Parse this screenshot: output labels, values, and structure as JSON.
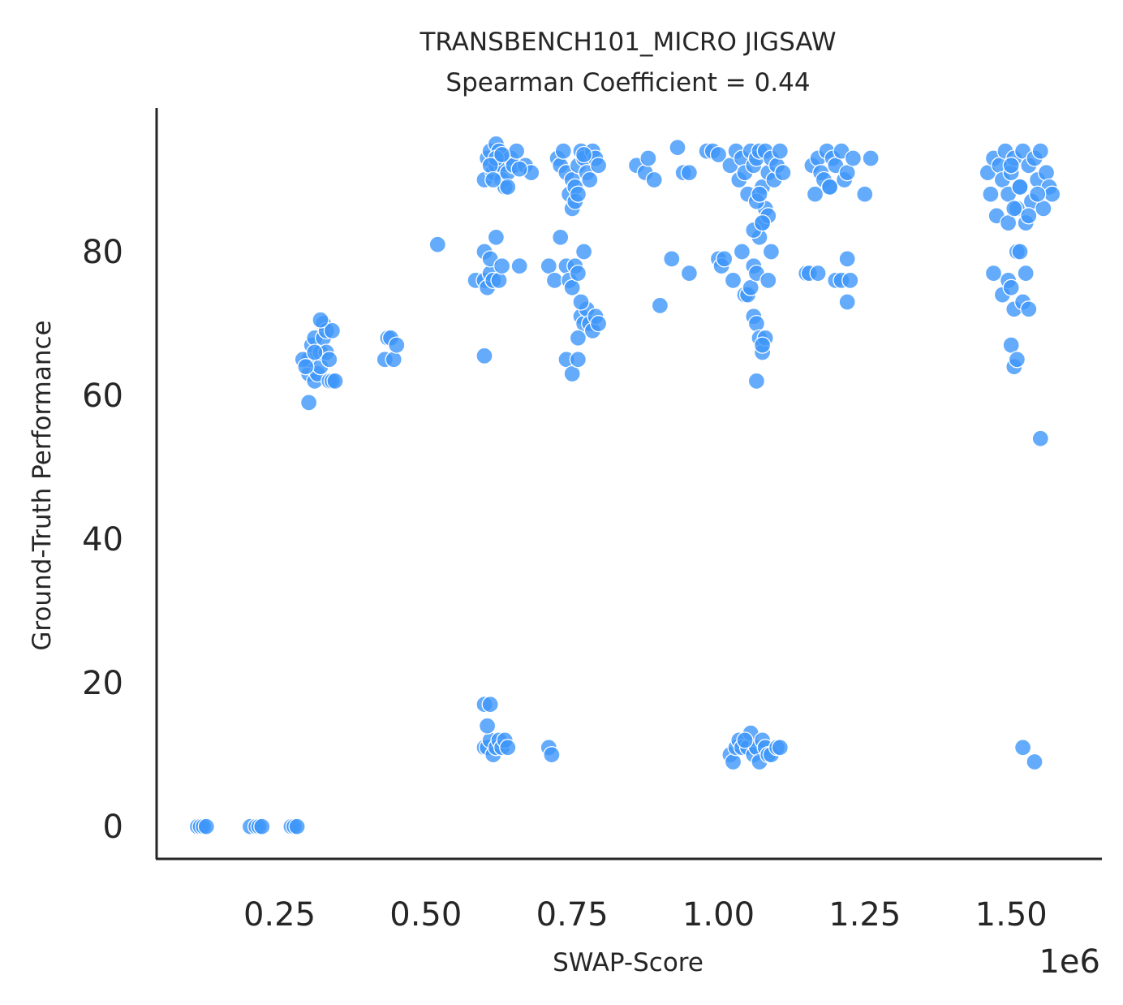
{
  "chart_data": {
    "type": "scatter",
    "title": "TRANSBENCH101_MICRO JIGSAW",
    "subtitle": "Spearman Coefficient = 0.44",
    "xlabel": "SWAP-Score",
    "ylabel": "Ground-Truth Performance",
    "x_offset_label": "1e6",
    "x_scale": 1000000,
    "xlim": [
      0.04,
      1.655
    ],
    "ylim": [
      -4.5,
      100
    ],
    "x_ticks": [
      0.25,
      0.5,
      0.75,
      1.0,
      1.25,
      1.5
    ],
    "x_tick_labels": [
      "0.25",
      "0.50",
      "0.75",
      "1.00",
      "1.25",
      "1.50"
    ],
    "y_ticks": [
      0,
      20,
      40,
      60,
      80
    ],
    "y_tick_labels": [
      "0",
      "20",
      "40",
      "60",
      "80"
    ],
    "grid": false,
    "point_color": "#3d96fa",
    "x_unit": "1e6",
    "points": [
      [
        0.11,
        0
      ],
      [
        0.115,
        0
      ],
      [
        0.12,
        0
      ],
      [
        0.125,
        0
      ],
      [
        0.2,
        0
      ],
      [
        0.21,
        0
      ],
      [
        0.215,
        0
      ],
      [
        0.22,
        0
      ],
      [
        0.27,
        0
      ],
      [
        0.275,
        0
      ],
      [
        0.28,
        0
      ],
      [
        0.3,
        59
      ],
      [
        0.3,
        63
      ],
      [
        0.3,
        65
      ],
      [
        0.305,
        67
      ],
      [
        0.31,
        68
      ],
      [
        0.31,
        62
      ],
      [
        0.315,
        63
      ],
      [
        0.32,
        64
      ],
      [
        0.32,
        66
      ],
      [
        0.325,
        68
      ],
      [
        0.325,
        70
      ],
      [
        0.33,
        66
      ],
      [
        0.33,
        69
      ],
      [
        0.335,
        65
      ],
      [
        0.335,
        62
      ],
      [
        0.34,
        69
      ],
      [
        0.34,
        62
      ],
      [
        0.345,
        62
      ],
      [
        0.29,
        65
      ],
      [
        0.295,
        64
      ],
      [
        0.31,
        66
      ],
      [
        0.32,
        70.5
      ],
      [
        0.43,
        65
      ],
      [
        0.435,
        68
      ],
      [
        0.44,
        68
      ],
      [
        0.445,
        65
      ],
      [
        0.45,
        67
      ],
      [
        0.52,
        81
      ],
      [
        0.585,
        76
      ],
      [
        0.6,
        80
      ],
      [
        0.6,
        76
      ],
      [
        0.605,
        75
      ],
      [
        0.61,
        77
      ],
      [
        0.61,
        79
      ],
      [
        0.615,
        76
      ],
      [
        0.62,
        82
      ],
      [
        0.625,
        76
      ],
      [
        0.63,
        78
      ],
      [
        0.6,
        65.5
      ],
      [
        0.6,
        90
      ],
      [
        0.605,
        93
      ],
      [
        0.61,
        94
      ],
      [
        0.615,
        91
      ],
      [
        0.62,
        92
      ],
      [
        0.62,
        95
      ],
      [
        0.625,
        94
      ],
      [
        0.63,
        92
      ],
      [
        0.63,
        90
      ],
      [
        0.635,
        89
      ],
      [
        0.64,
        91
      ],
      [
        0.645,
        93
      ],
      [
        0.65,
        92
      ],
      [
        0.655,
        94
      ],
      [
        0.62,
        93
      ],
      [
        0.61,
        92
      ],
      [
        0.615,
        90
      ],
      [
        0.63,
        93.5
      ],
      [
        0.64,
        89
      ],
      [
        0.66,
        78
      ],
      [
        0.67,
        92
      ],
      [
        0.68,
        91
      ],
      [
        0.66,
        91.5
      ],
      [
        0.6,
        11
      ],
      [
        0.605,
        11
      ],
      [
        0.61,
        12
      ],
      [
        0.615,
        10
      ],
      [
        0.62,
        11
      ],
      [
        0.625,
        12
      ],
      [
        0.63,
        11
      ],
      [
        0.635,
        12
      ],
      [
        0.64,
        11
      ],
      [
        0.6,
        17
      ],
      [
        0.61,
        17
      ],
      [
        0.605,
        14
      ],
      [
        0.71,
        11
      ],
      [
        0.715,
        10
      ],
      [
        0.71,
        78
      ],
      [
        0.72,
        76
      ],
      [
        0.73,
        82
      ],
      [
        0.74,
        78
      ],
      [
        0.745,
        76
      ],
      [
        0.75,
        75
      ],
      [
        0.755,
        78
      ],
      [
        0.76,
        77
      ],
      [
        0.765,
        71
      ],
      [
        0.77,
        70
      ],
      [
        0.775,
        72
      ],
      [
        0.78,
        70
      ],
      [
        0.785,
        69
      ],
      [
        0.79,
        71
      ],
      [
        0.76,
        68
      ],
      [
        0.77,
        80
      ],
      [
        0.795,
        70
      ],
      [
        0.74,
        65
      ],
      [
        0.75,
        63
      ],
      [
        0.76,
        65
      ],
      [
        0.765,
        73
      ],
      [
        0.725,
        93
      ],
      [
        0.73,
        92
      ],
      [
        0.735,
        94
      ],
      [
        0.74,
        91
      ],
      [
        0.745,
        88
      ],
      [
        0.75,
        90
      ],
      [
        0.755,
        89
      ],
      [
        0.76,
        92
      ],
      [
        0.765,
        94
      ],
      [
        0.77,
        93
      ],
      [
        0.775,
        91
      ],
      [
        0.78,
        90
      ],
      [
        0.785,
        94
      ],
      [
        0.79,
        93
      ],
      [
        0.795,
        92
      ],
      [
        0.75,
        86
      ],
      [
        0.755,
        87
      ],
      [
        0.76,
        88
      ],
      [
        0.77,
        93.5
      ],
      [
        0.86,
        92
      ],
      [
        0.875,
        91
      ],
      [
        0.88,
        93
      ],
      [
        0.89,
        90
      ],
      [
        0.9,
        72.5
      ],
      [
        0.92,
        79
      ],
      [
        0.93,
        94.5
      ],
      [
        0.94,
        91
      ],
      [
        0.95,
        91
      ],
      [
        0.95,
        77
      ],
      [
        0.98,
        94
      ],
      [
        0.99,
        94
      ],
      [
        1.0,
        93.5
      ],
      [
        1.0,
        79
      ],
      [
        1.005,
        78
      ],
      [
        1.01,
        79
      ],
      [
        1.02,
        92
      ],
      [
        1.025,
        76
      ],
      [
        1.03,
        94
      ],
      [
        1.035,
        90
      ],
      [
        1.04,
        93
      ],
      [
        1.04,
        80
      ],
      [
        1.045,
        91
      ],
      [
        1.05,
        88
      ],
      [
        1.055,
        94
      ],
      [
        1.06,
        92
      ],
      [
        1.065,
        93
      ],
      [
        1.07,
        94
      ],
      [
        1.075,
        89
      ],
      [
        1.08,
        94
      ],
      [
        1.085,
        91
      ],
      [
        1.09,
        93
      ],
      [
        1.095,
        90
      ],
      [
        1.1,
        92
      ],
      [
        1.105,
        94
      ],
      [
        1.11,
        91
      ],
      [
        1.045,
        74
      ],
      [
        1.05,
        74
      ],
      [
        1.055,
        75
      ],
      [
        1.06,
        78
      ],
      [
        1.065,
        77
      ],
      [
        1.07,
        82
      ],
      [
        1.075,
        84
      ],
      [
        1.08,
        86
      ],
      [
        1.085,
        85
      ],
      [
        1.09,
        80
      ],
      [
        1.06,
        71
      ],
      [
        1.065,
        70
      ],
      [
        1.07,
        68
      ],
      [
        1.075,
        66
      ],
      [
        1.08,
        68
      ],
      [
        1.065,
        62
      ],
      [
        1.075,
        67
      ],
      [
        1.085,
        76
      ],
      [
        1.06,
        83
      ],
      [
        1.065,
        87
      ],
      [
        1.07,
        88
      ],
      [
        1.075,
        84
      ],
      [
        1.02,
        10
      ],
      [
        1.025,
        9
      ],
      [
        1.03,
        11
      ],
      [
        1.035,
        12
      ],
      [
        1.04,
        11
      ],
      [
        1.05,
        11
      ],
      [
        1.055,
        13
      ],
      [
        1.06,
        10
      ],
      [
        1.065,
        11
      ],
      [
        1.07,
        9
      ],
      [
        1.075,
        12
      ],
      [
        1.08,
        11
      ],
      [
        1.085,
        10
      ],
      [
        1.09,
        10
      ],
      [
        1.1,
        11
      ],
      [
        1.105,
        11
      ],
      [
        1.045,
        12
      ],
      [
        1.15,
        77
      ],
      [
        1.155,
        77
      ],
      [
        1.17,
        77
      ],
      [
        1.2,
        76
      ],
      [
        1.21,
        76
      ],
      [
        1.22,
        79
      ],
      [
        1.225,
        76
      ],
      [
        1.22,
        73
      ],
      [
        1.16,
        92
      ],
      [
        1.165,
        88
      ],
      [
        1.17,
        93
      ],
      [
        1.175,
        91
      ],
      [
        1.18,
        90
      ],
      [
        1.185,
        94
      ],
      [
        1.19,
        89
      ],
      [
        1.195,
        93
      ],
      [
        1.2,
        92
      ],
      [
        1.21,
        94
      ],
      [
        1.215,
        90
      ],
      [
        1.22,
        91
      ],
      [
        1.23,
        93
      ],
      [
        1.25,
        88
      ],
      [
        1.26,
        93
      ],
      [
        1.19,
        89
      ],
      [
        1.46,
        91
      ],
      [
        1.465,
        88
      ],
      [
        1.47,
        93
      ],
      [
        1.475,
        85
      ],
      [
        1.48,
        92
      ],
      [
        1.485,
        90
      ],
      [
        1.49,
        94
      ],
      [
        1.495,
        88
      ],
      [
        1.5,
        91
      ],
      [
        1.505,
        93
      ],
      [
        1.51,
        86
      ],
      [
        1.515,
        89
      ],
      [
        1.52,
        94
      ],
      [
        1.525,
        84
      ],
      [
        1.53,
        92
      ],
      [
        1.535,
        87
      ],
      [
        1.54,
        93
      ],
      [
        1.545,
        90
      ],
      [
        1.55,
        94
      ],
      [
        1.555,
        86
      ],
      [
        1.56,
        91
      ],
      [
        1.565,
        89
      ],
      [
        1.57,
        88
      ],
      [
        1.495,
        84
      ],
      [
        1.505,
        86
      ],
      [
        1.515,
        89
      ],
      [
        1.53,
        85
      ],
      [
        1.545,
        88
      ],
      [
        1.5,
        92
      ],
      [
        1.47,
        77
      ],
      [
        1.485,
        74
      ],
      [
        1.495,
        76
      ],
      [
        1.5,
        75
      ],
      [
        1.505,
        72
      ],
      [
        1.51,
        80
      ],
      [
        1.515,
        80
      ],
      [
        1.52,
        73
      ],
      [
        1.525,
        77
      ],
      [
        1.53,
        72
      ],
      [
        1.5,
        67
      ],
      [
        1.505,
        64
      ],
      [
        1.51,
        65
      ],
      [
        1.55,
        54
      ],
      [
        1.52,
        11
      ],
      [
        1.54,
        9
      ]
    ]
  }
}
